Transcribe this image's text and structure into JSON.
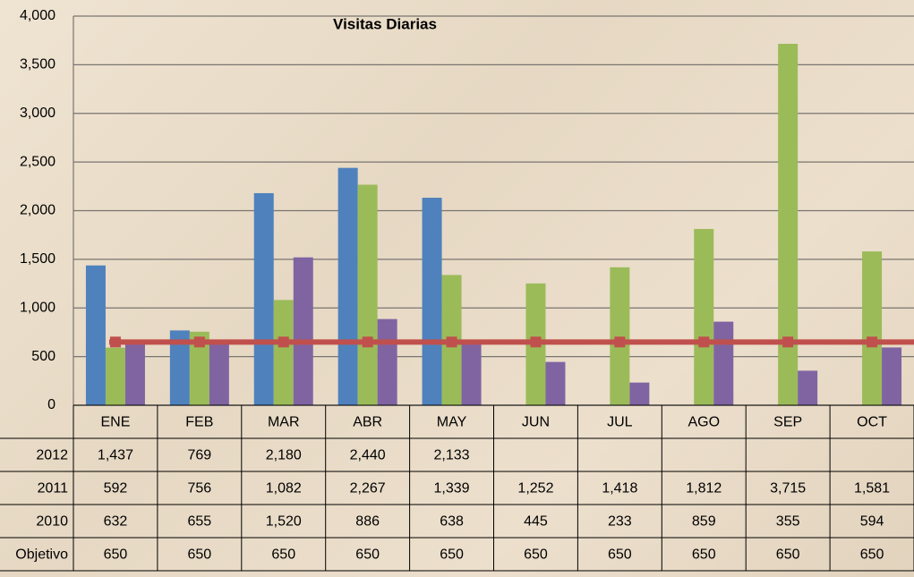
{
  "chart_data": {
    "type": "bar",
    "title": "Visitas Diarias",
    "categories": [
      "ENE",
      "FEB",
      "MAR",
      "ABR",
      "MAY",
      "JUN",
      "JUL",
      "AGO",
      "SEP",
      "OCT"
    ],
    "series": [
      {
        "name": "2012",
        "color": "#4f81bd",
        "values": [
          1437,
          769,
          2180,
          2440,
          2133,
          null,
          null,
          null,
          null,
          null
        ],
        "value_labels": [
          "1,437",
          "769",
          "2,180",
          "2,440",
          "2,133",
          null,
          null,
          null,
          null,
          null
        ]
      },
      {
        "name": "2011",
        "color": "#9bbb59",
        "values": [
          592,
          756,
          1082,
          2267,
          1339,
          1252,
          1418,
          1812,
          3715,
          1581
        ],
        "value_labels": [
          "592",
          "756",
          "1,082",
          "2,267",
          "1,339",
          "1,252",
          "1,418",
          "1,812",
          "3,715",
          "1,581"
        ]
      },
      {
        "name": "2010",
        "color": "#8064a2",
        "values": [
          632,
          655,
          1520,
          886,
          638,
          445,
          233,
          859,
          355,
          594
        ],
        "value_labels": [
          "632",
          "655",
          "1,520",
          "886",
          "638",
          "445",
          "233",
          "859",
          "355",
          "594"
        ]
      },
      {
        "name": "Objetivo",
        "type": "line",
        "color": "#c0504d",
        "values": [
          650,
          650,
          650,
          650,
          650,
          650,
          650,
          650,
          650,
          650
        ]
      }
    ],
    "ylim": [
      0,
      4000
    ],
    "yticks": [
      0,
      500,
      {
        "value": 1000,
        "label": "1,000"
      },
      {
        "value": 1500,
        "label": "1,500"
      },
      {
        "value": 2000,
        "label": "2,000"
      },
      {
        "value": 2500,
        "label": "2,500"
      },
      {
        "value": 3000,
        "label": "3,000"
      },
      {
        "value": 3500,
        "label": "3,500"
      },
      {
        "value": 4000,
        "label": "4,000"
      }
    ],
    "grid": true
  }
}
